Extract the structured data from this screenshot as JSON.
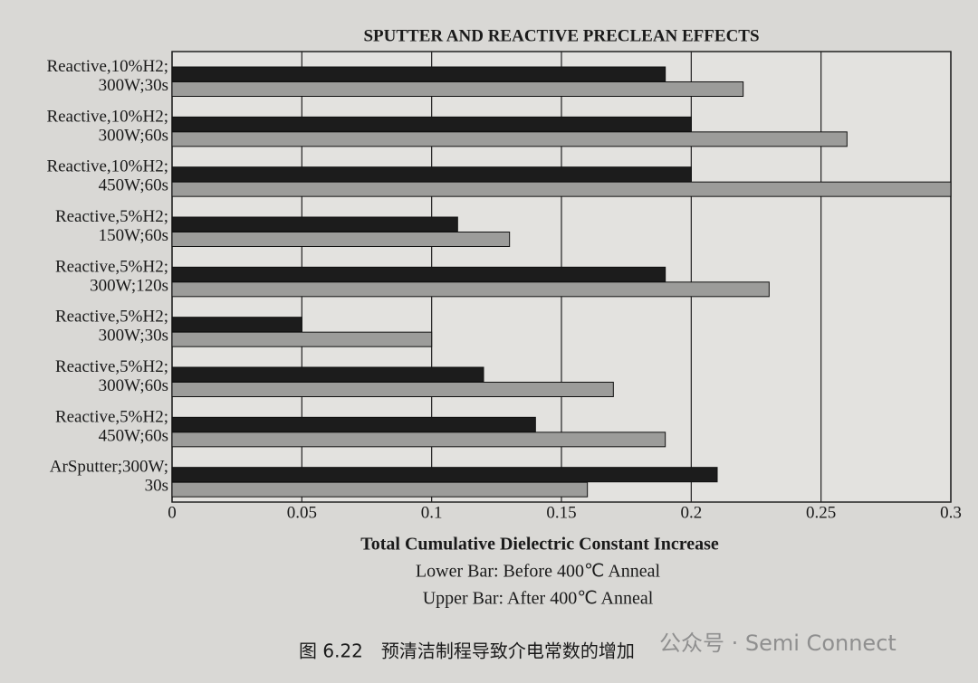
{
  "chart_data": {
    "type": "hbar",
    "title": "SPUTTER AND REACTIVE PRECLEAN EFFECTS",
    "xlabel": "Total Cumulative Dielectric Constant Increase",
    "categories": [
      [
        "Reactive,10%H2;",
        "300W;30s"
      ],
      [
        "Reactive,10%H2;",
        "300W;60s"
      ],
      [
        "Reactive,10%H2;",
        "450W;60s"
      ],
      [
        "Reactive,5%H2;",
        "150W;60s"
      ],
      [
        "Reactive,5%H2;",
        "300W;120s"
      ],
      [
        "Reactive,5%H2;",
        "300W;30s"
      ],
      [
        "Reactive,5%H2;",
        "300W;60s"
      ],
      [
        "Reactive,5%H2;",
        "450W;60s"
      ],
      [
        "ArSputter;300W;",
        "30s"
      ]
    ],
    "series": [
      {
        "name": "Upper Bar: After 400℃ Anneal",
        "color": "#1c1c1c",
        "values": [
          0.19,
          0.2,
          0.2,
          0.11,
          0.19,
          0.05,
          0.12,
          0.14,
          0.21
        ]
      },
      {
        "name": "Lower Bar: Before 400℃ Anneal",
        "color": "#9c9c9a",
        "values": [
          0.22,
          0.26,
          0.3,
          0.13,
          0.23,
          0.1,
          0.17,
          0.19,
          0.16
        ]
      }
    ],
    "xlim": [
      0,
      0.3
    ],
    "xticks": [
      0,
      0.05,
      0.1,
      0.15,
      0.2,
      0.25,
      0.3
    ],
    "grid": true,
    "caption": "图 6.22　预清洁制程导致介电常数的增加",
    "watermark": "公众号 · Semi Connect"
  }
}
